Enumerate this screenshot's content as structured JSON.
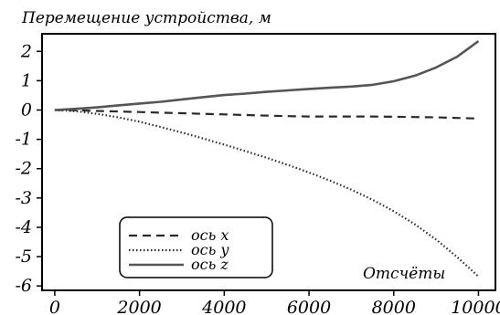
{
  "chart_data": {
    "type": "line",
    "title": "Перемещение устройства, м",
    "xlabel": "Отсчёты",
    "ylabel": "",
    "xlim": [
      -300,
      10400
    ],
    "ylim": [
      -6.15,
      2.6
    ],
    "xticks": [
      0,
      2000,
      4000,
      6000,
      8000,
      10000
    ],
    "yticks": [
      2,
      1,
      0,
      -1,
      -2,
      -3,
      -4,
      -5,
      -6
    ],
    "xtick_labels": [
      "0",
      "2000",
      "4000",
      "6000",
      "8000",
      "10000"
    ],
    "ytick_labels": [
      "2",
      "1",
      "0",
      "-1",
      "-2",
      "-3",
      "-4",
      "-5",
      "-6"
    ],
    "grid": false,
    "legend_position": "bottom-left",
    "series": [
      {
        "name": "ось x",
        "style": "dashed",
        "color": "#2a2a2a",
        "x": [
          0,
          500,
          1000,
          1500,
          2000,
          2500,
          3000,
          3500,
          4000,
          4500,
          5000,
          5500,
          6000,
          6500,
          7000,
          7500,
          8000,
          8500,
          9000,
          9500,
          10000
        ],
        "y": [
          0,
          -0.01,
          -0.03,
          -0.05,
          -0.07,
          -0.09,
          -0.11,
          -0.13,
          -0.15,
          -0.17,
          -0.19,
          -0.21,
          -0.22,
          -0.22,
          -0.22,
          -0.22,
          -0.23,
          -0.24,
          -0.25,
          -0.27,
          -0.29
        ]
      },
      {
        "name": "ось y",
        "style": "dotted",
        "color": "#2a2a2a",
        "x": [
          0,
          500,
          1000,
          1500,
          2000,
          2500,
          3000,
          3500,
          4000,
          4500,
          5000,
          5500,
          6000,
          6500,
          7000,
          7500,
          8000,
          8500,
          9000,
          9500,
          10000
        ],
        "y": [
          0,
          -0.04,
          -0.13,
          -0.25,
          -0.4,
          -0.58,
          -0.77,
          -0.97,
          -1.18,
          -1.4,
          -1.63,
          -1.87,
          -2.13,
          -2.41,
          -2.72,
          -3.06,
          -3.45,
          -3.9,
          -4.42,
          -5.02,
          -5.68
        ]
      },
      {
        "name": "ось z",
        "style": "solid",
        "color": "#555555",
        "x": [
          0,
          500,
          1000,
          1500,
          2000,
          2500,
          3000,
          3500,
          4000,
          4500,
          5000,
          5500,
          6000,
          6500,
          7000,
          7500,
          8000,
          8500,
          9000,
          9500,
          10000
        ],
        "y": [
          0,
          0.04,
          0.09,
          0.16,
          0.22,
          0.28,
          0.36,
          0.44,
          0.51,
          0.56,
          0.62,
          0.67,
          0.72,
          0.76,
          0.8,
          0.86,
          0.98,
          1.17,
          1.45,
          1.82,
          2.35
        ]
      }
    ]
  }
}
